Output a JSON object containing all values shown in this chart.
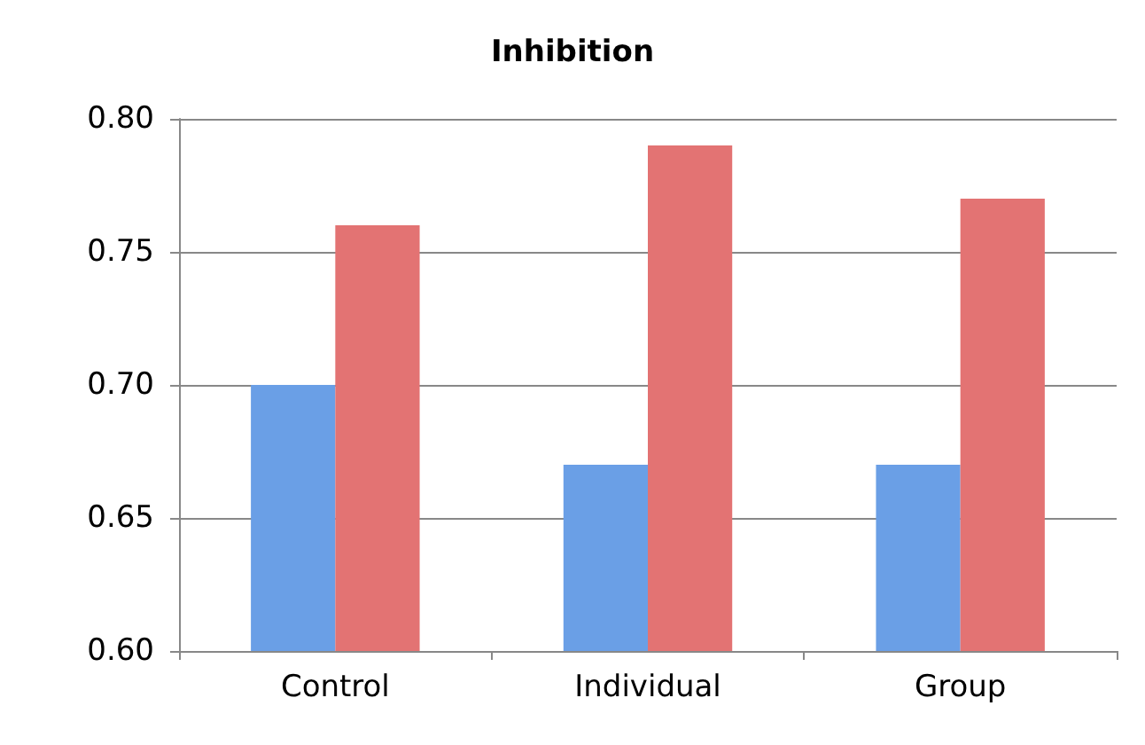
{
  "chart_data": {
    "type": "bar",
    "title": "Inhibition",
    "categories": [
      "Control",
      "Individual",
      "Group"
    ],
    "series": [
      {
        "color": "#6a9fe6",
        "values": [
          0.7,
          0.67,
          0.67
        ]
      },
      {
        "color": "#e37373",
        "values": [
          0.76,
          0.79,
          0.77
        ]
      }
    ],
    "ylim": [
      0.6,
      0.8
    ],
    "yticks": [
      {
        "value": 0.6,
        "label": "0.60"
      },
      0.65,
      {
        "value": 0.7,
        "label": "0.70"
      },
      0.75,
      {
        "value": 0.8,
        "label": "0.80"
      }
    ],
    "grid": "y"
  }
}
